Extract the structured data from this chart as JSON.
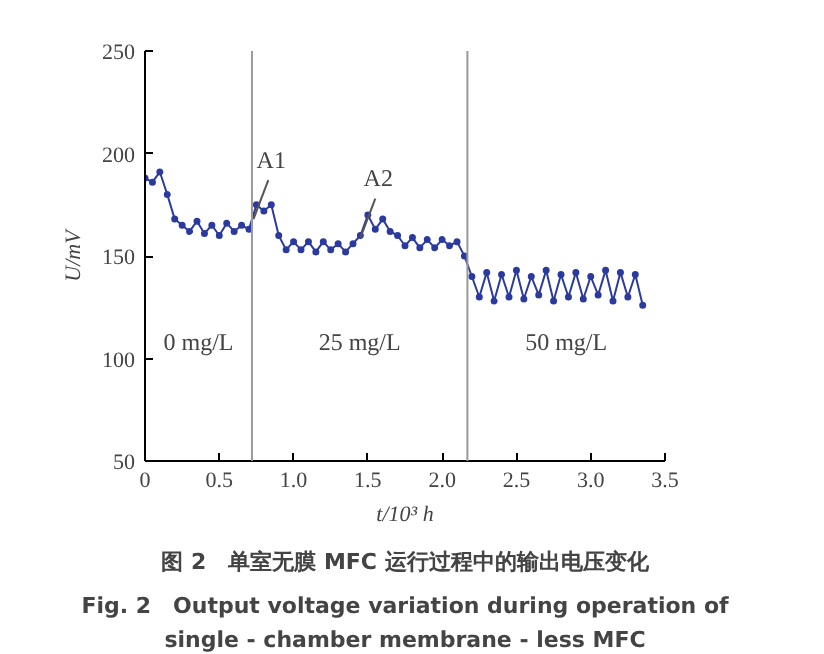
{
  "chart_data": {
    "type": "line",
    "xlabel": "t/10³ h",
    "ylabel": "U/mV",
    "xlim": [
      0,
      3.5
    ],
    "xticks": [
      0,
      0.5,
      {
        "value": 1.0,
        "label": "1.0"
      },
      1.5,
      {
        "value": 2.0,
        "label": "2.0"
      },
      2.5,
      {
        "value": 3.0,
        "label": "3.0"
      },
      3.5
    ],
    "ylim": [
      50,
      250
    ],
    "yticks": [
      50,
      100,
      150,
      200,
      250
    ],
    "grid": false,
    "marker": "circle",
    "line_style": "solid",
    "x": [
      0,
      0.05,
      0.1,
      0.15,
      0.2,
      0.25,
      0.3,
      0.35,
      0.4,
      0.45,
      0.5,
      0.55,
      0.6,
      0.65,
      0.7,
      0.75,
      0.8,
      0.85,
      0.9,
      0.95,
      1.0,
      1.05,
      1.1,
      1.15,
      1.2,
      1.25,
      1.3,
      1.35,
      1.4,
      1.45,
      1.5,
      1.55,
      1.6,
      1.65,
      1.7,
      1.75,
      1.8,
      1.85,
      1.9,
      1.95,
      2.0,
      2.05,
      2.1,
      2.15,
      2.2,
      2.25,
      2.3,
      2.35,
      2.4,
      2.45,
      2.5,
      2.55,
      2.6,
      2.65,
      2.7,
      2.75,
      2.8,
      2.85,
      2.9,
      2.95,
      3.0,
      3.05,
      3.1,
      3.15,
      3.2,
      3.25,
      3.3,
      3.35
    ],
    "series": [
      {
        "color": "#2b3a9e",
        "values": [
          188,
          186,
          191,
          180,
          168,
          165,
          162,
          167,
          161,
          165,
          160,
          166,
          162,
          165,
          163,
          175,
          172,
          175,
          160,
          153,
          157,
          153,
          157,
          152,
          157,
          153,
          156,
          152,
          156,
          160,
          170,
          163,
          168,
          162,
          160,
          155,
          159,
          154,
          158,
          154,
          158,
          155,
          157,
          150,
          140,
          130,
          142,
          128,
          141,
          130,
          143,
          129,
          140,
          131,
          143,
          128,
          141,
          130,
          142,
          129,
          140,
          131,
          143,
          128,
          142,
          130,
          141,
          126
        ]
      }
    ],
    "ref_lines": [
      {
        "axis": "x",
        "value": 0.72,
        "color": "#999999"
      },
      {
        "axis": "x",
        "value": 2.17,
        "color": "#999999"
      }
    ],
    "annotations": [
      {
        "text": "A1",
        "x": 0.73,
        "y": 168
      },
      {
        "text": "A2",
        "x": 1.45,
        "y": 159
      },
      "0 mg/L",
      "25 mg/L",
      "50 mg/L",
      "图 2　单室无膜 MFC 运行过程中的输出电压变化",
      "Fig. 2　Output voltage variation during operation of",
      "single - chamber membrane - less MFC"
    ]
  }
}
